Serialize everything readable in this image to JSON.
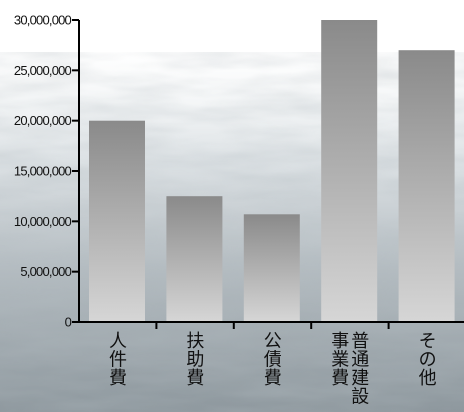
{
  "chart_data": {
    "type": "bar",
    "categories": [
      "人件費",
      "扶助費",
      "公債費",
      "普通建設事業費",
      "その他"
    ],
    "category_label_columns": [
      [
        "人件費"
      ],
      [
        "扶助費"
      ],
      [
        "公債費"
      ],
      [
        "事業費",
        "普通建設"
      ],
      [
        "その他"
      ]
    ],
    "values": [
      20000000,
      12500000,
      10700000,
      30000000,
      27000000
    ],
    "y_tick_labels": [
      "0",
      "5,000,000",
      "10,000,000",
      "15,000,000",
      "20,000,000",
      "25,000,000",
      "30,000,000"
    ],
    "y_ticks": [
      0,
      5000000,
      10000000,
      15000000,
      20000000,
      25000000,
      30000000
    ],
    "ylim": [
      0,
      30000000
    ],
    "title": "",
    "xlabel": "",
    "ylabel": "",
    "grid": false,
    "legend": "none",
    "background": "water-texture",
    "colors": {
      "bar_top": "#8a8a8a",
      "bar_bottom": "#d6d6d6",
      "axis": "#000000",
      "sky": "#ffffff",
      "water_light": "#c9d0d4",
      "water_dark": "#7d878d"
    }
  }
}
